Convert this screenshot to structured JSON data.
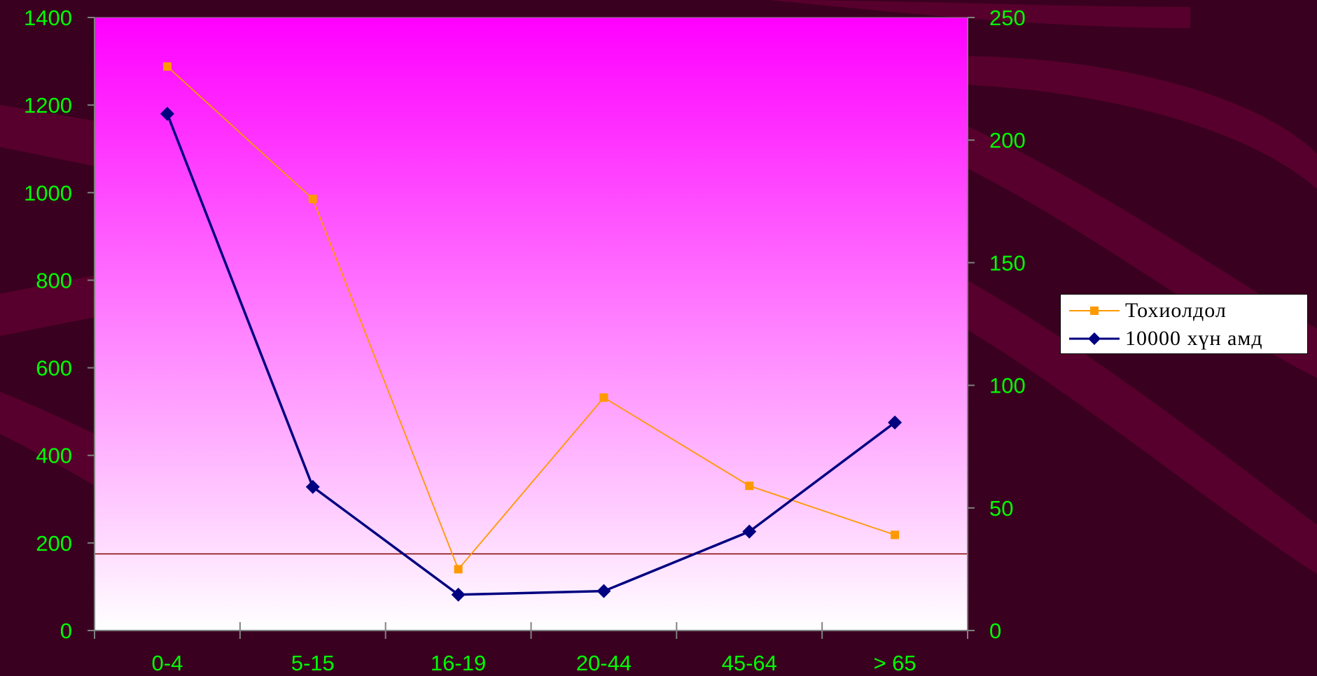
{
  "colors": {
    "background": "#3a0020",
    "background_band": "#5e0030",
    "plot_top": "#ff00ff",
    "plot_bottom": "#ffffff",
    "tick_text": "#00ff00",
    "series1": "#ff9900",
    "series2": "#000080"
  },
  "chart_data": {
    "type": "line",
    "categories": [
      "0-4",
      "5-15",
      "16-19",
      "20-44",
      "45-64",
      "> 65"
    ],
    "series": [
      {
        "name": "Тохиолдол",
        "axis": "right",
        "marker": "square",
        "values": [
          230,
          176,
          25,
          95,
          59,
          39
        ]
      },
      {
        "name": "10000 хүн амд",
        "axis": "left",
        "marker": "diamond",
        "values": [
          1180,
          328,
          82,
          90,
          226,
          475
        ]
      }
    ],
    "y_left": {
      "min": 0,
      "max": 1400,
      "ticks": [
        "0",
        "200",
        "400",
        "600",
        "800",
        "1000",
        "1200",
        "1400"
      ]
    },
    "y_right": {
      "min": 0,
      "max": 250,
      "ticks": [
        "0",
        "50",
        "100",
        "150",
        "200",
        "250"
      ]
    },
    "reference_line_left": 175,
    "grid": false,
    "legend_position": "right"
  }
}
